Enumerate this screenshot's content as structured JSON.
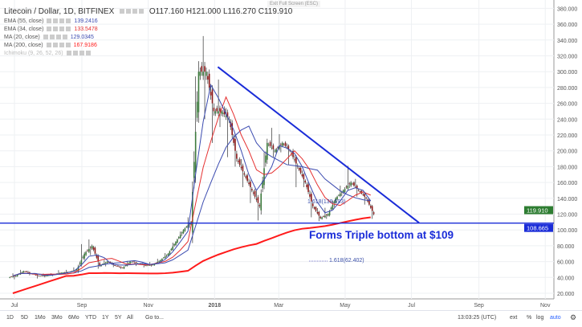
{
  "header": {
    "symbol": "Litecoin / Dollar, 1D, BITFINEX",
    "open": "O117.160",
    "high": "H121.000",
    "low": "L116.270",
    "close": "C119.910",
    "exit_fullscreen": "Exit Full Screen (ESC)"
  },
  "indicators": [
    {
      "label": "EMA (55, close)",
      "value": "139.2416",
      "color": "#3b4bb0"
    },
    {
      "label": "EMA (34, close)",
      "value": "133.5478",
      "color": "#e53030"
    },
    {
      "label": "MA (20, close)",
      "value": "129.0345",
      "color": "#3b4bb0"
    },
    {
      "label": "MA (200, close)",
      "value": "167.9186",
      "color": "#ff1a1a"
    },
    {
      "label": "Ichimoku (9, 26, 52, 26)",
      "value": "",
      "color": "#bbb"
    }
  ],
  "annotation": "Forms Triple bottom at $109",
  "fib_labels": [
    "1.618(138.593)",
    "1.618(62.402)"
  ],
  "price_labels": {
    "last": "119.910",
    "support": "108.665"
  },
  "toolbar": {
    "ranges": [
      "1D",
      "5D",
      "1Mo",
      "3Mo",
      "6Mo",
      "YTD",
      "1Y",
      "5Y",
      "All"
    ],
    "goto": "Go to...",
    "time": "13:03:25 (UTC)",
    "ext": "ext",
    "pct": "%",
    "log": "log",
    "auto": "auto"
  },
  "chart_data": {
    "type": "candlestick",
    "ylim": [
      20,
      380
    ],
    "yticks": [
      20,
      40,
      60,
      80,
      100,
      120,
      140,
      160,
      180,
      200,
      220,
      240,
      260,
      280,
      300,
      320,
      340,
      360,
      380
    ],
    "xticks": [
      {
        "label": "Jul",
        "date": "2017-07-01"
      },
      {
        "label": "Sep",
        "date": "2017-09-01"
      },
      {
        "label": "Nov",
        "date": "2017-11-01"
      },
      {
        "label": "2018",
        "date": "2018-01-01"
      },
      {
        "label": "Mar",
        "date": "2018-03-01"
      },
      {
        "label": "May",
        "date": "2018-05-01"
      },
      {
        "label": "Jul",
        "date": "2018-07-01"
      },
      {
        "label": "Sep",
        "date": "2018-09-01"
      },
      {
        "label": "Nov",
        "date": "2018-11-01"
      }
    ],
    "weeks_start": "2017-06-26",
    "candles": [
      [
        40,
        46,
        36,
        42
      ],
      [
        42,
        52,
        40,
        48
      ],
      [
        48,
        50,
        42,
        45
      ],
      [
        45,
        47,
        38,
        42
      ],
      [
        42,
        45,
        40,
        42
      ],
      [
        42,
        46,
        40,
        44
      ],
      [
        44,
        50,
        42,
        46
      ],
      [
        46,
        50,
        44,
        47
      ],
      [
        47,
        54,
        45,
        50
      ],
      [
        50,
        90,
        48,
        70
      ],
      [
        70,
        92,
        60,
        80
      ],
      [
        80,
        82,
        46,
        55
      ],
      [
        55,
        64,
        50,
        60
      ],
      [
        60,
        62,
        52,
        55
      ],
      [
        55,
        56,
        50,
        52
      ],
      [
        52,
        64,
        50,
        60
      ],
      [
        60,
        62,
        54,
        58
      ],
      [
        58,
        60,
        52,
        55
      ],
      [
        55,
        60,
        53,
        56
      ],
      [
        56,
        66,
        54,
        62
      ],
      [
        62,
        74,
        60,
        70
      ],
      [
        70,
        90,
        68,
        85
      ],
      [
        85,
        104,
        82,
        100
      ],
      [
        100,
        120,
        95,
        110
      ],
      [
        110,
        370,
        105,
        300
      ],
      [
        300,
        345,
        240,
        300
      ],
      [
        300,
        310,
        200,
        250
      ],
      [
        250,
        290,
        230,
        250
      ],
      [
        250,
        260,
        190,
        240
      ],
      [
        240,
        245,
        170,
        190
      ],
      [
        190,
        200,
        150,
        170
      ],
      [
        170,
        175,
        130,
        150
      ],
      [
        150,
        160,
        108,
        130
      ],
      [
        130,
        230,
        125,
        210
      ],
      [
        210,
        235,
        190,
        200
      ],
      [
        200,
        225,
        190,
        210
      ],
      [
        210,
        215,
        180,
        200
      ],
      [
        200,
        205,
        150,
        180
      ],
      [
        180,
        185,
        150,
        160
      ],
      [
        160,
        165,
        110,
        130
      ],
      [
        130,
        135,
        108,
        115
      ],
      [
        115,
        130,
        110,
        120
      ],
      [
        120,
        145,
        115,
        140
      ],
      [
        140,
        160,
        135,
        150
      ],
      [
        150,
        185,
        145,
        160
      ],
      [
        160,
        170,
        140,
        150
      ],
      [
        150,
        152,
        130,
        140
      ],
      [
        140,
        142,
        110,
        120
      ]
    ],
    "series": [
      {
        "name": "EMA (55, close)",
        "color": "#3b4bb0",
        "window": 8
      },
      {
        "name": "EMA (34, close)",
        "color": "#e53030",
        "window": 5
      },
      {
        "name": "MA (20, close)",
        "color": "#3b4bb0",
        "window": 3
      },
      {
        "name": "MA (200, close)",
        "color": "#ff1a1a",
        "window": 29
      }
    ],
    "trendlines": [
      {
        "from": [
          "2018-01-04",
          306
        ],
        "to": [
          "2018-07-08",
          109
        ],
        "color": "#1a2cd8"
      },
      {
        "horizontal": 108.665,
        "color": "#1a2cd8"
      }
    ],
    "grid": true
  }
}
